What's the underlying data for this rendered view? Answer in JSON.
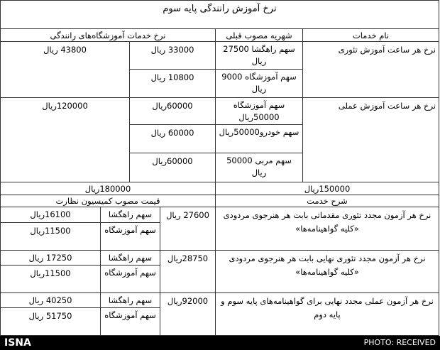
{
  "title": "نرخ آموزش رانندگی پایه سوم",
  "headers": {
    "service": "نام خدمات",
    "previous": "شهریه مصوب قبلی",
    "schools": "نرخ خدمات آموزشگاه‌های رانندگی"
  },
  "theory": {
    "name": "نرخ هر ساعت آموزش تئوری",
    "prev": [
      "سهم راهگشا 27500 ریال",
      "سهم آموزشگاه 9000 ریال"
    ],
    "new": [
      "33000 ریال",
      "10800 ریال"
    ],
    "total": "43800 ریال"
  },
  "practical": {
    "name": "نرخ هر ساعت آموزش عملی",
    "prev": [
      "سهم آموزشگاه 50000ریال",
      "سهم خودرو50000ریال",
      "سهم مربی 50000 ریال"
    ],
    "new": [
      "60000ریال",
      "60000 ریال",
      "60000ریال"
    ],
    "total": "120000ریال"
  },
  "totals": {
    "prev": "150000ریال",
    "new": "180000ریال"
  },
  "headers2": {
    "desc": "شرح خدمت",
    "price": "قیمت مصوب کمیسیون نظارت"
  },
  "exams": [
    {
      "desc": "نرخ هر آزمون مجدد تئوری مقدماتی بابت هر هنرجوی مردودی «کلیه گواهینامه‌ها»",
      "total": "27600 ریال",
      "share1_label": "سهم راهگشا",
      "share1": "16100ریال",
      "share2_label": "سهم آموزشگاه",
      "share2": "11500ریال"
    },
    {
      "desc": "نرخ هر آزمون مجدد تئوری نهایی بابت هر هنرجوی مردودی «کلیه گواهینامه‌ها»",
      "total": "28750ریال",
      "share1_label": "سهم راهگشا",
      "share1": "17250 ریال",
      "share2_label": "سهم آموزشگاه",
      "share2": "11500ریال"
    },
    {
      "desc": "نرخ هر آزمون عملی مجدد نهایی برای گواهینامه‌های پایه سوم و پایه دوم",
      "total": "92000ریال",
      "share1_label": "سهم راهگشا",
      "share1": "40250 ریال",
      "share2_label": "سهم آموزشگاه",
      "share2": "51750 ریال"
    }
  ],
  "footer": {
    "logo": "ISNA",
    "credit": "PHOTO: RECEIVED"
  }
}
